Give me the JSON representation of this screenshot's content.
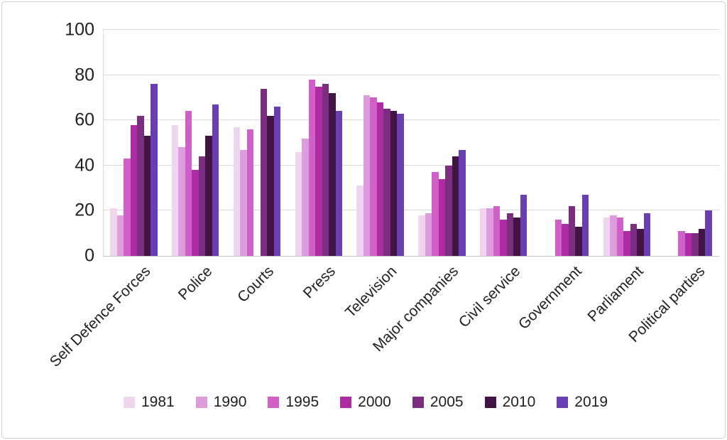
{
  "chart_data": {
    "type": "bar",
    "title": "",
    "xlabel": "",
    "ylabel": "",
    "ylim": [
      0,
      100
    ],
    "yticks": [
      0,
      20,
      40,
      60,
      80,
      100
    ],
    "grid": true,
    "legend_position": "bottom",
    "categories": [
      "Self Defence Forces",
      "Police",
      "Courts",
      "Press",
      "Television",
      "Major companies",
      "Civil service",
      "Government",
      "Parliament",
      "Political parties"
    ],
    "series": [
      {
        "name": "1981",
        "color": "#f0d5ee",
        "values": [
          21,
          58,
          57,
          46,
          31,
          18,
          21,
          null,
          17,
          null
        ]
      },
      {
        "name": "1990",
        "color": "#dd9ddd",
        "values": [
          18,
          48,
          47,
          52,
          71,
          19,
          21,
          null,
          18,
          null
        ]
      },
      {
        "name": "1995",
        "color": "#d05fc8",
        "values": [
          43,
          64,
          56,
          78,
          70,
          37,
          22,
          16,
          17,
          11
        ]
      },
      {
        "name": "2000",
        "color": "#ae2ba4",
        "values": [
          58,
          38,
          null,
          75,
          68,
          34,
          16,
          14,
          11,
          10
        ]
      },
      {
        "name": "2005",
        "color": "#7c2d80",
        "values": [
          62,
          44,
          74,
          76,
          65,
          40,
          19,
          22,
          14,
          10
        ]
      },
      {
        "name": "2010",
        "color": "#421443",
        "values": [
          53,
          53,
          62,
          72,
          64,
          44,
          17,
          13,
          12,
          12
        ]
      },
      {
        "name": "2019",
        "color": "#6a3fb3",
        "values": [
          76,
          67,
          66,
          64,
          63,
          47,
          27,
          27,
          19,
          20
        ]
      }
    ]
  }
}
